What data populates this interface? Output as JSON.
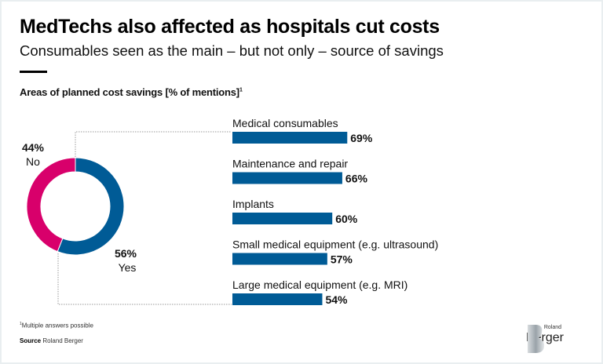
{
  "header": {
    "title": "MedTechs also affected as hospitals cut costs",
    "subtitle": "Consumables seen as the main – but not only – source of savings",
    "chart_title": "Areas of planned cost savings [% of mentions]",
    "chart_title_sup": "1"
  },
  "footer": {
    "footnote_sup": "1",
    "footnote": "Multiple answers possible",
    "source_label": "Source",
    "source_value": "Roland Berger"
  },
  "logo": {
    "small": "Roland",
    "large": "Berger"
  },
  "colors": {
    "blue": "#005b96",
    "magenta": "#d8006b"
  },
  "chart_data": [
    {
      "type": "pie",
      "variant": "donut",
      "categories": [
        "Yes",
        "No"
      ],
      "values": [
        56,
        44
      ],
      "labels": [
        "56%",
        "44%"
      ],
      "colors": [
        "#005b96",
        "#d8006b"
      ]
    },
    {
      "type": "bar",
      "orientation": "horizontal",
      "categories": [
        "Medical consumables",
        "Maintenance and repair",
        "Implants",
        "Small medical equipment (e.g. ultrasound)",
        "Large medical equipment (e.g. MRI)"
      ],
      "values": [
        69,
        66,
        60,
        57,
        54
      ],
      "value_labels": [
        "69%",
        "66%",
        "60%",
        "57%",
        "54%"
      ],
      "unit": "%",
      "xlim": [
        0,
        100
      ],
      "color": "#005b96"
    }
  ]
}
